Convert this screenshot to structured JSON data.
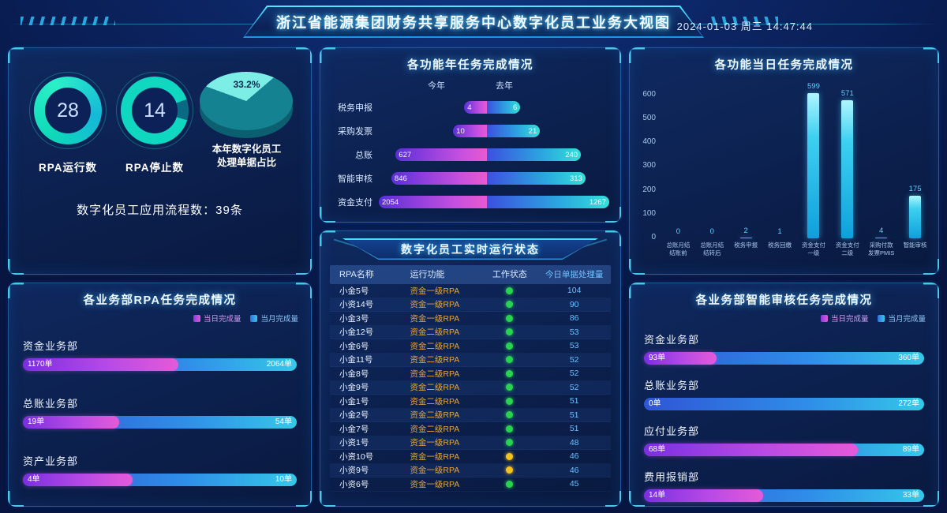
{
  "header": {
    "title": "浙江省能源集团财务共享服务中心数字化员工业务大视图",
    "datetime": "2024-01-03 周三 14:47:44"
  },
  "colors": {
    "accent": "#3fd8ff",
    "day_series": "#c44fe0",
    "month_series": "#2f8fe8",
    "status_green": "#27d34f",
    "status_yellow": "#f2c21d"
  },
  "overview": {
    "rpa_running": {
      "value": "28",
      "label": "RPA运行数"
    },
    "rpa_stopped": {
      "value": "14",
      "label": "RPA停止数"
    },
    "pie": {
      "value": 33.2,
      "percent": "33.2%",
      "label_line1": "本年数字化员工",
      "label_line2": "处理单据占比"
    },
    "flow_count": "数字化员工应用流程数：39条"
  },
  "chart_data": [
    {
      "id": "yearly",
      "type": "bar",
      "variant": "diverging-horizontal",
      "title": "各功能年任务完成情况",
      "categories": [
        "税务申报",
        "采购发票",
        "总账",
        "智能审核",
        "资金支付"
      ],
      "series": [
        {
          "name": "今年",
          "values": [
            4,
            10,
            627,
            846,
            2054
          ]
        },
        {
          "name": "去年",
          "values": [
            6,
            21,
            240,
            313,
            1267
          ]
        }
      ]
    },
    {
      "id": "daily",
      "type": "bar",
      "variant": "vertical",
      "title": "各功能当日任务完成情况",
      "categories": [
        [
          "总账月结",
          "结账前"
        ],
        [
          "总账月结",
          "结转后"
        ],
        [
          "税务申报"
        ],
        [
          "税务回缴"
        ],
        [
          "资金支付",
          "一级"
        ],
        [
          "资金支付",
          "二级"
        ],
        [
          "采购付款",
          "发票PMIS"
        ],
        [
          "智能审核"
        ]
      ],
      "values": [
        0,
        0,
        2,
        1,
        599,
        571,
        4,
        175
      ],
      "ylim": [
        0,
        600
      ],
      "y_ticks": [
        600,
        500,
        400,
        300,
        200,
        100,
        0
      ]
    },
    {
      "id": "dept_rpa",
      "type": "bar",
      "variant": "horizontal-overlay",
      "title": "各业务部RPA任务完成情况",
      "categories": [
        "资金业务部",
        "总账业务部",
        "资产业务部"
      ],
      "series": [
        {
          "name": "当日完成量",
          "values": [
            1170,
            19,
            4
          ],
          "labels": [
            "1170单",
            "19单",
            "4单"
          ]
        },
        {
          "name": "当月完成量",
          "values": [
            2064,
            54,
            10
          ],
          "labels": [
            "2064单",
            "54单",
            "10单"
          ]
        }
      ]
    },
    {
      "id": "audit",
      "type": "bar",
      "variant": "horizontal-overlay",
      "title": "各业务部智能审核任务完成情况",
      "categories": [
        "资金业务部",
        "总账业务部",
        "应付业务部",
        "费用报销部"
      ],
      "series": [
        {
          "name": "当日完成量",
          "values": [
            93,
            0,
            68,
            14
          ],
          "labels": [
            "93单",
            "0单",
            "68单",
            "14单"
          ]
        },
        {
          "name": "当月完成量",
          "values": [
            360,
            272,
            89,
            33
          ],
          "labels": [
            "360单",
            "272单",
            "89单",
            "33单"
          ]
        }
      ]
    }
  ],
  "rpa_table": {
    "banner": "数字化员工实时运行状态",
    "columns": [
      "RPA名称",
      "运行功能",
      "工作状态",
      "今日单据处理量"
    ],
    "rows": [
      {
        "name": "小金5号",
        "func": "资金一级RPA",
        "status": "green",
        "count": "104"
      },
      {
        "name": "小资14号",
        "func": "资金一级RPA",
        "status": "green",
        "count": "90"
      },
      {
        "name": "小金3号",
        "func": "资金一级RPA",
        "status": "green",
        "count": "86"
      },
      {
        "name": "小金12号",
        "func": "资金二级RPA",
        "status": "green",
        "count": "53"
      },
      {
        "name": "小金6号",
        "func": "资金二级RPA",
        "status": "green",
        "count": "53"
      },
      {
        "name": "小金11号",
        "func": "资金二级RPA",
        "status": "green",
        "count": "52"
      },
      {
        "name": "小金8号",
        "func": "资金二级RPA",
        "status": "green",
        "count": "52"
      },
      {
        "name": "小金9号",
        "func": "资金二级RPA",
        "status": "green",
        "count": "52"
      },
      {
        "name": "小金1号",
        "func": "资金二级RPA",
        "status": "green",
        "count": "51"
      },
      {
        "name": "小金2号",
        "func": "资金二级RPA",
        "status": "green",
        "count": "51"
      },
      {
        "name": "小金7号",
        "func": "资金二级RPA",
        "status": "green",
        "count": "51"
      },
      {
        "name": "小资1号",
        "func": "资金一级RPA",
        "status": "green",
        "count": "48"
      },
      {
        "name": "小资10号",
        "func": "资金一级RPA",
        "status": "yellow",
        "count": "46"
      },
      {
        "name": "小资9号",
        "func": "资金一级RPA",
        "status": "yellow",
        "count": "46"
      },
      {
        "name": "小资6号",
        "func": "资金一级RPA",
        "status": "green",
        "count": "45"
      }
    ]
  }
}
